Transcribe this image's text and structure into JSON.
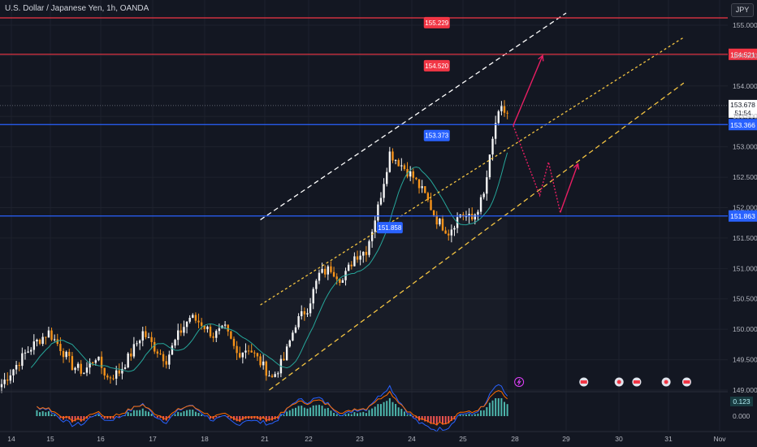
{
  "header": {
    "title": "U.S. Dollar / Japanese Yen, 1h, OANDA",
    "currency_button": "JPY"
  },
  "colors": {
    "background": "#131722",
    "grid": "#1e222d",
    "bull": "#f5f5f5",
    "bear": "#f7931a",
    "ma": "#26a69a",
    "resistance": "#f23645",
    "support": "#2962ff",
    "white_channel": "#ffffff",
    "yellow_channel": "#f5c542",
    "arrow": "#e91e63",
    "macd_pos": "#4db6ac",
    "macd_neg": "#ef5350",
    "macd_line": "#2962ff",
    "signal_line": "#ff6d00"
  },
  "chart_data": {
    "type": "candlestick",
    "symbol": "USDJPY",
    "ylim": [
      149.0,
      155.2
    ],
    "x_ticks": [
      "14",
      "15",
      "16",
      "17",
      "18",
      "21",
      "22",
      "23",
      "24",
      "25",
      "28",
      "29",
      "30",
      "31",
      "Nov"
    ],
    "y_ticks": [
      "155.000",
      "154.500",
      "154.000",
      "153.500",
      "153.000",
      "152.500",
      "152.000",
      "151.500",
      "151.000",
      "150.500",
      "150.000",
      "149.500",
      "149.000"
    ],
    "price_keypoints": [
      [
        0,
        149.1
      ],
      [
        4,
        149.35
      ],
      [
        8,
        149.6
      ],
      [
        12,
        149.8
      ],
      [
        16,
        149.95
      ],
      [
        20,
        149.7
      ],
      [
        24,
        149.4
      ],
      [
        28,
        149.3
      ],
      [
        32,
        149.55
      ],
      [
        36,
        149.2
      ],
      [
        40,
        149.3
      ],
      [
        44,
        149.6
      ],
      [
        48,
        149.95
      ],
      [
        52,
        149.7
      ],
      [
        56,
        149.5
      ],
      [
        60,
        149.9
      ],
      [
        64,
        150.2
      ],
      [
        68,
        150.1
      ],
      [
        72,
        149.9
      ],
      [
        76,
        150.0
      ],
      [
        80,
        149.6
      ],
      [
        84,
        149.7
      ],
      [
        88,
        149.45
      ],
      [
        92,
        149.2
      ],
      [
        96,
        149.5
      ],
      [
        100,
        150.1
      ],
      [
        104,
        150.35
      ],
      [
        108,
        150.9
      ],
      [
        112,
        151.0
      ],
      [
        116,
        150.8
      ],
      [
        120,
        151.2
      ],
      [
        124,
        151.3
      ],
      [
        128,
        152.0
      ],
      [
        132,
        152.9
      ],
      [
        136,
        152.7
      ],
      [
        140,
        152.5
      ],
      [
        144,
        152.2
      ],
      [
        148,
        151.8
      ],
      [
        152,
        151.6
      ],
      [
        156,
        151.9
      ],
      [
        160,
        151.8
      ],
      [
        164,
        152.2
      ],
      [
        168,
        153.4
      ],
      [
        170,
        153.6
      ],
      [
        172,
        153.55
      ]
    ],
    "current_price": "153.678",
    "countdown": "51:54",
    "level_lines": [
      {
        "price": 155.12,
        "color_key": "resistance"
      },
      {
        "price": 154.521,
        "color_key": "resistance",
        "axis_label": "154.521"
      },
      {
        "price": 153.366,
        "color_key": "support",
        "axis_label": "153.366"
      },
      {
        "price": 151.863,
        "color_key": "support",
        "axis_label": "151.863"
      }
    ],
    "callouts": [
      {
        "text": "155.229",
        "price": 155.229,
        "bar": 148,
        "color_key": "resistance"
      },
      {
        "text": "154.520",
        "price": 154.52,
        "bar": 148,
        "color_key": "resistance"
      },
      {
        "text": "153.373",
        "price": 153.373,
        "bar": 148,
        "color_key": "support"
      },
      {
        "text": "151.858",
        "price": 151.858,
        "bar": 132,
        "color_key": "support"
      }
    ],
    "white_channel": [
      [
        88,
        151.8
      ],
      [
        192,
        155.2
      ]
    ],
    "yellow_channel_upper": [
      [
        88,
        150.4
      ],
      [
        232,
        154.8
      ]
    ],
    "yellow_channel_lower": [
      [
        91,
        149.0
      ],
      [
        232,
        154.05
      ]
    ],
    "forecast_paths": [
      {
        "style": "solid",
        "points": [
          [
            174,
            153.35
          ],
          [
            184,
            154.5
          ]
        ]
      },
      {
        "style": "dotted",
        "points": [
          [
            174,
            153.35
          ],
          [
            183,
            152.2
          ],
          [
            186,
            152.75
          ],
          [
            190,
            151.92
          ]
        ]
      },
      {
        "style": "solid",
        "points": [
          [
            190,
            151.92
          ],
          [
            196,
            152.72
          ]
        ]
      }
    ],
    "macd": {
      "zero_label": "0.000",
      "value_label": "0.123"
    },
    "event_icons": [
      {
        "type": "lightning",
        "bar": 176
      },
      {
        "type": "flag",
        "bar": 198
      },
      {
        "type": "circle",
        "bar": 210
      },
      {
        "type": "flag",
        "bar": 216
      },
      {
        "type": "circle",
        "bar": 226
      },
      {
        "type": "flag",
        "bar": 233
      }
    ]
  }
}
